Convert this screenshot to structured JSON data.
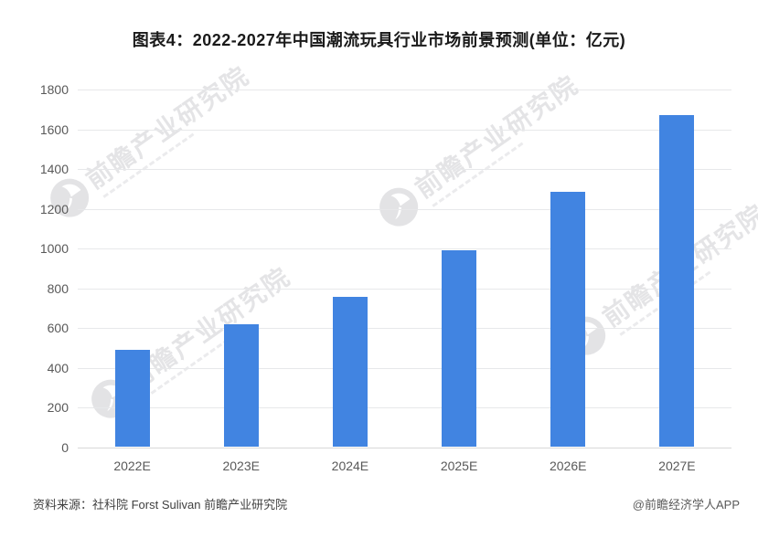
{
  "title": "图表4：2022-2027年中国潮流玩具行业市场前景预测(单位：亿元)",
  "watermark": {
    "brand": "前瞻产业研究院"
  },
  "footer": {
    "source": "资料来源：社科院 Forst Sulivan 前瞻产业研究院",
    "credit": "@前瞻经济学人APP"
  },
  "colors": {
    "bar": "#4184e1",
    "grid": "#e7e8ea",
    "axis_text": "#595959",
    "title_text": "#1a1a1a",
    "watermark": "#82828e"
  },
  "chart_data": {
    "type": "bar",
    "categories": [
      "2022E",
      "2023E",
      "2024E",
      "2025E",
      "2026E",
      "2027E"
    ],
    "values": [
      490,
      620,
      760,
      990,
      1285,
      1670
    ],
    "title": "图表4：2022-2027年中国潮流玩具行业市场前景预测(单位：亿元)",
    "xlabel": "",
    "ylabel": "",
    "ylim": [
      0,
      1800
    ],
    "y_ticks": [
      0,
      200,
      400,
      600,
      800,
      1000,
      1200,
      1400,
      1600,
      1800
    ],
    "grid": true,
    "legend": false
  }
}
